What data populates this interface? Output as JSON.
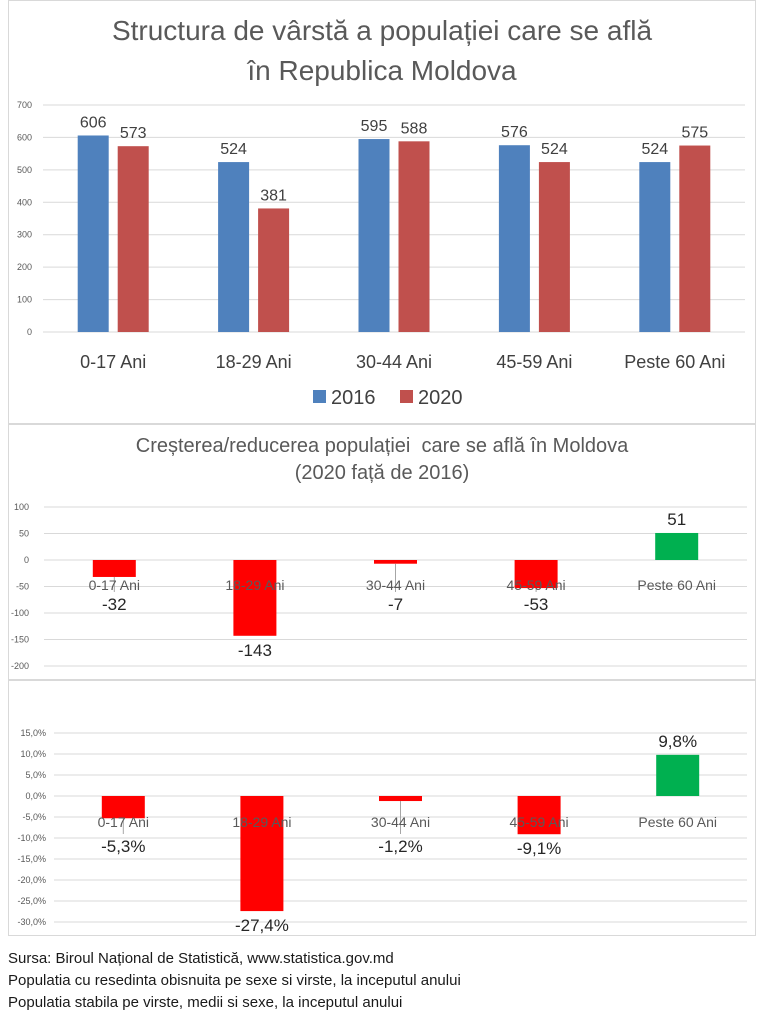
{
  "chart_data": [
    {
      "type": "bar",
      "title": "Structura de vârstă a populației care se află în Republica Moldova",
      "title_lines": [
        "Structura de vârstă a populației care se află",
        "în Republica Moldova"
      ],
      "categories": [
        "0-17 Ani",
        "18-29 Ani",
        "30-44 Ani",
        "45-59 Ani",
        "Peste 60 Ani"
      ],
      "series": [
        {
          "name": "2016",
          "color": "#4f81bd",
          "values": [
            606,
            524,
            595,
            576,
            524
          ]
        },
        {
          "name": "2020",
          "color": "#c0504d",
          "values": [
            573,
            381,
            588,
            524,
            575
          ]
        }
      ],
      "ylim": [
        0,
        700
      ],
      "yticks": [
        0,
        100,
        200,
        300,
        400,
        500,
        600,
        700
      ],
      "xlabel": "",
      "ylabel": "",
      "grid": true,
      "legend": "bottom"
    },
    {
      "type": "bar",
      "title": "Creșterea/reducerea populației care se află în Moldova (2020 față de 2016)",
      "title_lines": [
        "Creșterea/reducerea populației  care se află în Moldova",
        "(2020 față de 2016)"
      ],
      "categories": [
        "0-17 Ani",
        "18-29 Ani",
        "30-44 Ani",
        "45-59 Ani",
        "Peste 60 Ani"
      ],
      "values": [
        -32,
        -143,
        -7,
        -53,
        51
      ],
      "labels": [
        "-32",
        "-143",
        "-7",
        "-53",
        "51"
      ],
      "colors": {
        "negative": "#ff0000",
        "positive": "#00b050"
      },
      "ylim": [
        -200,
        100
      ],
      "yticks": [
        -200,
        -150,
        -100,
        -50,
        0,
        50,
        100
      ],
      "ytick_labels": [
        "-200",
        "-150",
        "-100",
        "-50",
        "0",
        "50",
        "100"
      ],
      "grid": true,
      "legend": "none"
    },
    {
      "type": "bar",
      "title": "",
      "categories": [
        "0-17 Ani",
        "18-29 Ani",
        "30-44 Ani",
        "45-59 Ani",
        "Peste 60 Ani"
      ],
      "values": [
        -5.3,
        -27.4,
        -1.2,
        -9.1,
        9.8
      ],
      "labels": [
        "-5,3%",
        "-27,4%",
        "-1,2%",
        "-9,1%",
        "9,8%"
      ],
      "colors": {
        "negative": "#ff0000",
        "positive": "#00b050"
      },
      "ylim": [
        -30,
        15
      ],
      "yticks": [
        -30,
        -25,
        -20,
        -15,
        -10,
        -5,
        0,
        5,
        10,
        15
      ],
      "ytick_labels": [
        "-30,0%",
        "-25,0%",
        "-20,0%",
        "-15,0%",
        "-10,0%",
        "-5,0%",
        "0,0%",
        "5,0%",
        "10,0%",
        "15,0%"
      ],
      "grid": true,
      "legend": "none"
    }
  ],
  "footer": {
    "lines": [
      "Sursa: Biroul Național de Statistică, www.statistica.gov.md",
      "Populatia cu resedinta obisnuita pe sexe si virste, la inceputul anului",
      "Populatia stabila pe virste, medii si sexe, la inceputul anului"
    ]
  }
}
